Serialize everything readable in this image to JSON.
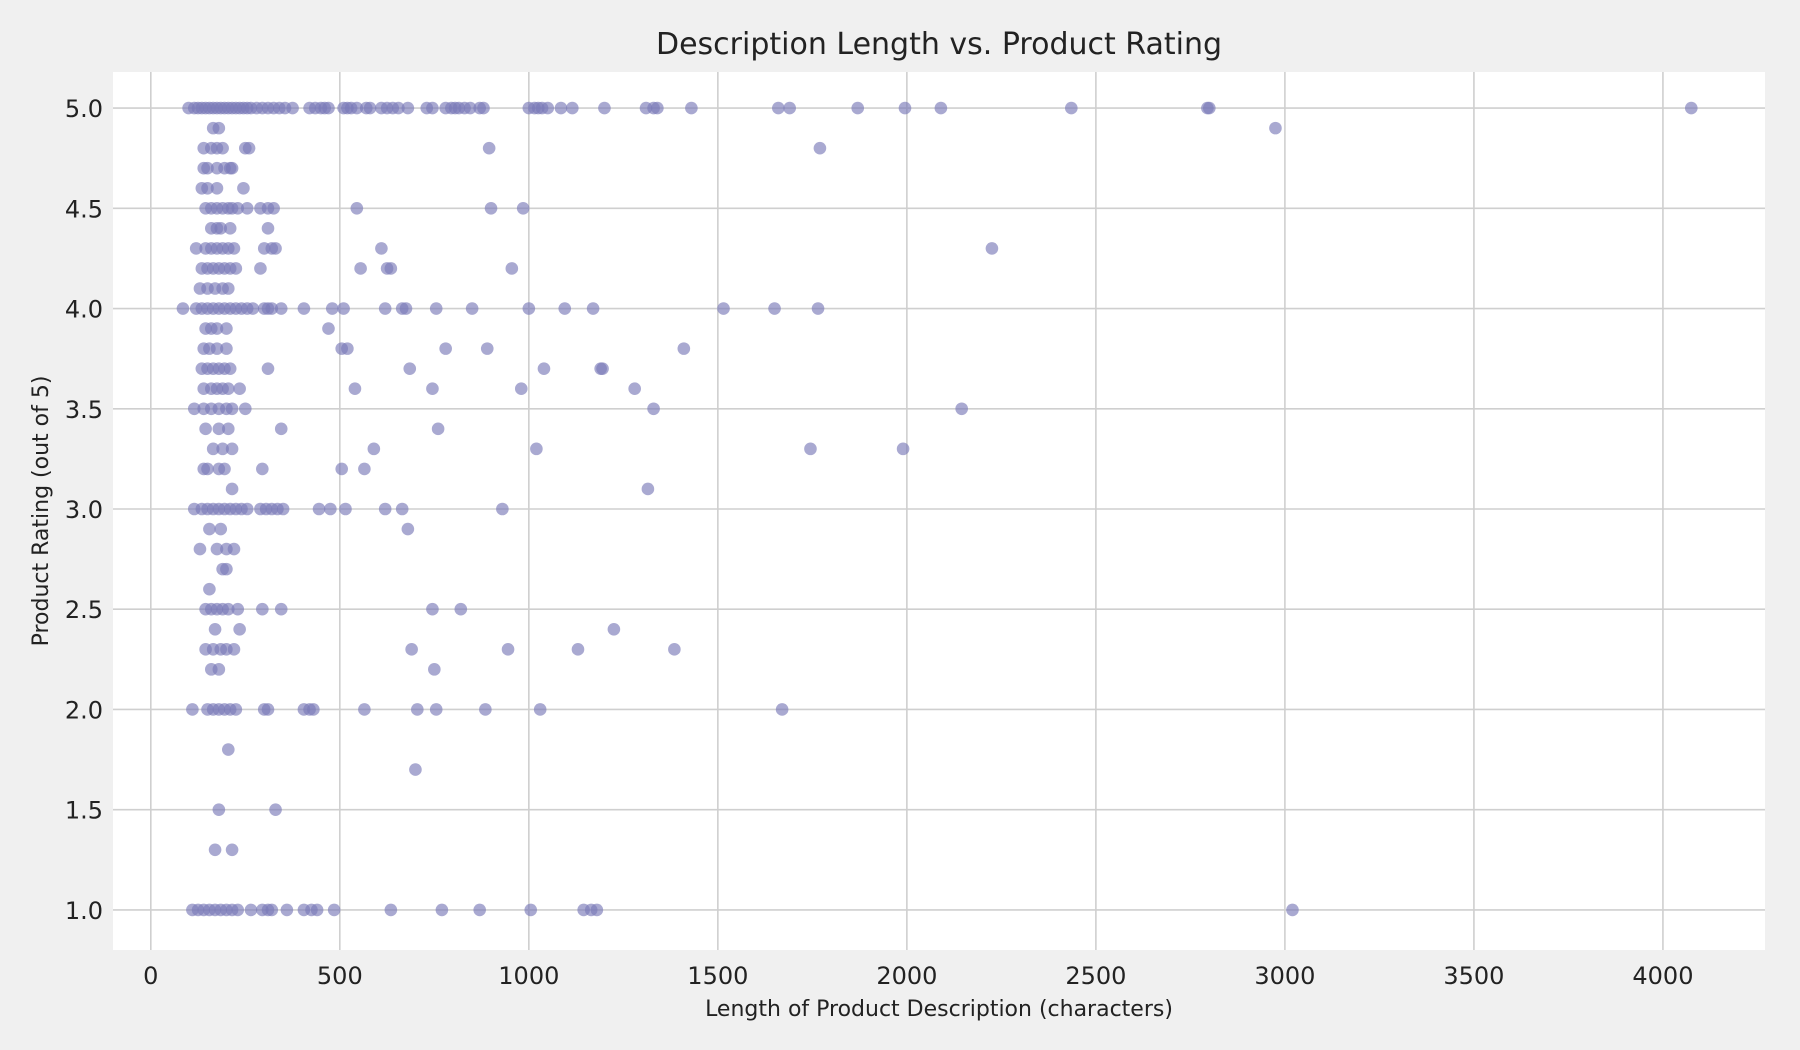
{
  "chart_data": {
    "type": "scatter",
    "title": "Description Length vs. Product Rating",
    "xlabel": "Length of Product Description (characters)",
    "ylabel": "Product Rating (out of 5)",
    "xlim": [
      -100,
      4270
    ],
    "ylim": [
      0.8,
      5.18
    ],
    "xticks": [
      0,
      500,
      1000,
      1500,
      2000,
      2500,
      3000,
      3500,
      4000
    ],
    "xtick_labels": [
      "0",
      "500",
      "1000",
      "1500",
      "2000",
      "2500",
      "3000",
      "3500",
      "4000"
    ],
    "yticks": [
      1.0,
      1.5,
      2.0,
      2.5,
      3.0,
      3.5,
      4.0,
      4.5,
      5.0
    ],
    "ytick_labels": [
      "1.0",
      "1.5",
      "2.0",
      "2.5",
      "3.0",
      "3.5",
      "4.0",
      "4.5",
      "5.0"
    ],
    "grid": true,
    "marker_color": "#7b7bb8",
    "marker_opacity": 0.65,
    "points": [
      [
        100,
        5.0
      ],
      [
        115,
        5.0
      ],
      [
        125,
        5.0
      ],
      [
        135,
        5.0
      ],
      [
        145,
        5.0
      ],
      [
        155,
        5.0
      ],
      [
        165,
        5.0
      ],
      [
        175,
        5.0
      ],
      [
        185,
        5.0
      ],
      [
        195,
        5.0
      ],
      [
        205,
        5.0
      ],
      [
        215,
        5.0
      ],
      [
        225,
        5.0
      ],
      [
        235,
        5.0
      ],
      [
        245,
        5.0
      ],
      [
        255,
        5.0
      ],
      [
        265,
        5.0
      ],
      [
        280,
        5.0
      ],
      [
        295,
        5.0
      ],
      [
        310,
        5.0
      ],
      [
        325,
        5.0
      ],
      [
        340,
        5.0
      ],
      [
        355,
        5.0
      ],
      [
        375,
        5.0
      ],
      [
        420,
        5.0
      ],
      [
        435,
        5.0
      ],
      [
        450,
        5.0
      ],
      [
        460,
        5.0
      ],
      [
        470,
        5.0
      ],
      [
        510,
        5.0
      ],
      [
        520,
        5.0
      ],
      [
        530,
        5.0
      ],
      [
        545,
        5.0
      ],
      [
        570,
        5.0
      ],
      [
        580,
        5.0
      ],
      [
        610,
        5.0
      ],
      [
        625,
        5.0
      ],
      [
        640,
        5.0
      ],
      [
        655,
        5.0
      ],
      [
        680,
        5.0
      ],
      [
        730,
        5.0
      ],
      [
        745,
        5.0
      ],
      [
        780,
        5.0
      ],
      [
        795,
        5.0
      ],
      [
        805,
        5.0
      ],
      [
        815,
        5.0
      ],
      [
        830,
        5.0
      ],
      [
        845,
        5.0
      ],
      [
        870,
        5.0
      ],
      [
        880,
        5.0
      ],
      [
        1000,
        5.0
      ],
      [
        1015,
        5.0
      ],
      [
        1025,
        5.0
      ],
      [
        1035,
        5.0
      ],
      [
        1050,
        5.0
      ],
      [
        1085,
        5.0
      ],
      [
        1115,
        5.0
      ],
      [
        1200,
        5.0
      ],
      [
        1310,
        5.0
      ],
      [
        1330,
        5.0
      ],
      [
        1340,
        5.0
      ],
      [
        1430,
        5.0
      ],
      [
        1660,
        5.0
      ],
      [
        1690,
        5.0
      ],
      [
        1870,
        5.0
      ],
      [
        1995,
        5.0
      ],
      [
        2090,
        5.0
      ],
      [
        2435,
        5.0
      ],
      [
        2795,
        5.0
      ],
      [
        2800,
        5.0
      ],
      [
        4075,
        5.0
      ],
      [
        2975,
        4.9
      ],
      [
        165,
        4.9
      ],
      [
        180,
        4.9
      ],
      [
        140,
        4.8
      ],
      [
        160,
        4.8
      ],
      [
        175,
        4.8
      ],
      [
        190,
        4.8
      ],
      [
        250,
        4.8
      ],
      [
        260,
        4.8
      ],
      [
        895,
        4.8
      ],
      [
        1770,
        4.8
      ],
      [
        140,
        4.7
      ],
      [
        150,
        4.7
      ],
      [
        175,
        4.7
      ],
      [
        195,
        4.7
      ],
      [
        210,
        4.7
      ],
      [
        215,
        4.7
      ],
      [
        135,
        4.6
      ],
      [
        150,
        4.6
      ],
      [
        175,
        4.6
      ],
      [
        245,
        4.6
      ],
      [
        145,
        4.5
      ],
      [
        160,
        4.5
      ],
      [
        175,
        4.5
      ],
      [
        190,
        4.5
      ],
      [
        205,
        4.5
      ],
      [
        215,
        4.5
      ],
      [
        230,
        4.5
      ],
      [
        255,
        4.5
      ],
      [
        290,
        4.5
      ],
      [
        310,
        4.5
      ],
      [
        325,
        4.5
      ],
      [
        545,
        4.5
      ],
      [
        900,
        4.5
      ],
      [
        985,
        4.5
      ],
      [
        160,
        4.4
      ],
      [
        175,
        4.4
      ],
      [
        185,
        4.4
      ],
      [
        210,
        4.4
      ],
      [
        310,
        4.4
      ],
      [
        120,
        4.3
      ],
      [
        145,
        4.3
      ],
      [
        160,
        4.3
      ],
      [
        175,
        4.3
      ],
      [
        190,
        4.3
      ],
      [
        205,
        4.3
      ],
      [
        220,
        4.3
      ],
      [
        300,
        4.3
      ],
      [
        320,
        4.3
      ],
      [
        330,
        4.3
      ],
      [
        610,
        4.3
      ],
      [
        2225,
        4.3
      ],
      [
        135,
        4.2
      ],
      [
        150,
        4.2
      ],
      [
        165,
        4.2
      ],
      [
        180,
        4.2
      ],
      [
        195,
        4.2
      ],
      [
        210,
        4.2
      ],
      [
        225,
        4.2
      ],
      [
        290,
        4.2
      ],
      [
        555,
        4.2
      ],
      [
        625,
        4.2
      ],
      [
        635,
        4.2
      ],
      [
        955,
        4.2
      ],
      [
        130,
        4.1
      ],
      [
        150,
        4.1
      ],
      [
        170,
        4.1
      ],
      [
        190,
        4.1
      ],
      [
        205,
        4.1
      ],
      [
        85,
        4.0
      ],
      [
        120,
        4.0
      ],
      [
        135,
        4.0
      ],
      [
        150,
        4.0
      ],
      [
        165,
        4.0
      ],
      [
        180,
        4.0
      ],
      [
        195,
        4.0
      ],
      [
        210,
        4.0
      ],
      [
        225,
        4.0
      ],
      [
        240,
        4.0
      ],
      [
        255,
        4.0
      ],
      [
        270,
        4.0
      ],
      [
        300,
        4.0
      ],
      [
        310,
        4.0
      ],
      [
        320,
        4.0
      ],
      [
        345,
        4.0
      ],
      [
        405,
        4.0
      ],
      [
        480,
        4.0
      ],
      [
        510,
        4.0
      ],
      [
        620,
        4.0
      ],
      [
        665,
        4.0
      ],
      [
        675,
        4.0
      ],
      [
        755,
        4.0
      ],
      [
        850,
        4.0
      ],
      [
        1000,
        4.0
      ],
      [
        1095,
        4.0
      ],
      [
        1170,
        4.0
      ],
      [
        1515,
        4.0
      ],
      [
        1650,
        4.0
      ],
      [
        1765,
        4.0
      ],
      [
        145,
        3.9
      ],
      [
        160,
        3.9
      ],
      [
        175,
        3.9
      ],
      [
        200,
        3.9
      ],
      [
        470,
        3.9
      ],
      [
        140,
        3.8
      ],
      [
        155,
        3.8
      ],
      [
        175,
        3.8
      ],
      [
        200,
        3.8
      ],
      [
        505,
        3.8
      ],
      [
        520,
        3.8
      ],
      [
        780,
        3.8
      ],
      [
        890,
        3.8
      ],
      [
        1410,
        3.8
      ],
      [
        135,
        3.7
      ],
      [
        150,
        3.7
      ],
      [
        165,
        3.7
      ],
      [
        180,
        3.7
      ],
      [
        195,
        3.7
      ],
      [
        210,
        3.7
      ],
      [
        310,
        3.7
      ],
      [
        685,
        3.7
      ],
      [
        1040,
        3.7
      ],
      [
        1190,
        3.7
      ],
      [
        1195,
        3.7
      ],
      [
        140,
        3.6
      ],
      [
        160,
        3.6
      ],
      [
        175,
        3.6
      ],
      [
        190,
        3.6
      ],
      [
        205,
        3.6
      ],
      [
        235,
        3.6
      ],
      [
        540,
        3.6
      ],
      [
        745,
        3.6
      ],
      [
        980,
        3.6
      ],
      [
        1280,
        3.6
      ],
      [
        115,
        3.5
      ],
      [
        140,
        3.5
      ],
      [
        160,
        3.5
      ],
      [
        180,
        3.5
      ],
      [
        200,
        3.5
      ],
      [
        215,
        3.5
      ],
      [
        250,
        3.5
      ],
      [
        1330,
        3.5
      ],
      [
        2145,
        3.5
      ],
      [
        145,
        3.4
      ],
      [
        180,
        3.4
      ],
      [
        205,
        3.4
      ],
      [
        345,
        3.4
      ],
      [
        760,
        3.4
      ],
      [
        165,
        3.3
      ],
      [
        190,
        3.3
      ],
      [
        215,
        3.3
      ],
      [
        590,
        3.3
      ],
      [
        1020,
        3.3
      ],
      [
        1745,
        3.3
      ],
      [
        1990,
        3.3
      ],
      [
        140,
        3.2
      ],
      [
        150,
        3.2
      ],
      [
        180,
        3.2
      ],
      [
        195,
        3.2
      ],
      [
        295,
        3.2
      ],
      [
        505,
        3.2
      ],
      [
        565,
        3.2
      ],
      [
        215,
        3.1
      ],
      [
        1315,
        3.1
      ],
      [
        115,
        3.0
      ],
      [
        135,
        3.0
      ],
      [
        150,
        3.0
      ],
      [
        165,
        3.0
      ],
      [
        180,
        3.0
      ],
      [
        195,
        3.0
      ],
      [
        210,
        3.0
      ],
      [
        225,
        3.0
      ],
      [
        240,
        3.0
      ],
      [
        255,
        3.0
      ],
      [
        290,
        3.0
      ],
      [
        305,
        3.0
      ],
      [
        320,
        3.0
      ],
      [
        335,
        3.0
      ],
      [
        350,
        3.0
      ],
      [
        445,
        3.0
      ],
      [
        475,
        3.0
      ],
      [
        515,
        3.0
      ],
      [
        620,
        3.0
      ],
      [
        665,
        3.0
      ],
      [
        930,
        3.0
      ],
      [
        155,
        2.9
      ],
      [
        185,
        2.9
      ],
      [
        680,
        2.9
      ],
      [
        130,
        2.8
      ],
      [
        175,
        2.8
      ],
      [
        200,
        2.8
      ],
      [
        220,
        2.8
      ],
      [
        190,
        2.7
      ],
      [
        200,
        2.7
      ],
      [
        155,
        2.6
      ],
      [
        145,
        2.5
      ],
      [
        160,
        2.5
      ],
      [
        175,
        2.5
      ],
      [
        190,
        2.5
      ],
      [
        205,
        2.5
      ],
      [
        230,
        2.5
      ],
      [
        295,
        2.5
      ],
      [
        345,
        2.5
      ],
      [
        745,
        2.5
      ],
      [
        820,
        2.5
      ],
      [
        170,
        2.4
      ],
      [
        235,
        2.4
      ],
      [
        1225,
        2.4
      ],
      [
        145,
        2.3
      ],
      [
        165,
        2.3
      ],
      [
        185,
        2.3
      ],
      [
        200,
        2.3
      ],
      [
        220,
        2.3
      ],
      [
        690,
        2.3
      ],
      [
        945,
        2.3
      ],
      [
        1130,
        2.3
      ],
      [
        1385,
        2.3
      ],
      [
        160,
        2.2
      ],
      [
        180,
        2.2
      ],
      [
        750,
        2.2
      ],
      [
        110,
        2.0
      ],
      [
        150,
        2.0
      ],
      [
        165,
        2.0
      ],
      [
        180,
        2.0
      ],
      [
        195,
        2.0
      ],
      [
        210,
        2.0
      ],
      [
        225,
        2.0
      ],
      [
        300,
        2.0
      ],
      [
        310,
        2.0
      ],
      [
        405,
        2.0
      ],
      [
        420,
        2.0
      ],
      [
        430,
        2.0
      ],
      [
        565,
        2.0
      ],
      [
        705,
        2.0
      ],
      [
        755,
        2.0
      ],
      [
        885,
        2.0
      ],
      [
        1030,
        2.0
      ],
      [
        1670,
        2.0
      ],
      [
        205,
        1.8
      ],
      [
        700,
        1.7
      ],
      [
        180,
        1.5
      ],
      [
        330,
        1.5
      ],
      [
        170,
        1.3
      ],
      [
        215,
        1.3
      ],
      [
        110,
        1.0
      ],
      [
        125,
        1.0
      ],
      [
        140,
        1.0
      ],
      [
        155,
        1.0
      ],
      [
        170,
        1.0
      ],
      [
        185,
        1.0
      ],
      [
        200,
        1.0
      ],
      [
        215,
        1.0
      ],
      [
        230,
        1.0
      ],
      [
        265,
        1.0
      ],
      [
        295,
        1.0
      ],
      [
        310,
        1.0
      ],
      [
        320,
        1.0
      ],
      [
        360,
        1.0
      ],
      [
        405,
        1.0
      ],
      [
        425,
        1.0
      ],
      [
        440,
        1.0
      ],
      [
        485,
        1.0
      ],
      [
        635,
        1.0
      ],
      [
        770,
        1.0
      ],
      [
        870,
        1.0
      ],
      [
        1005,
        1.0
      ],
      [
        1145,
        1.0
      ],
      [
        1165,
        1.0
      ],
      [
        1180,
        1.0
      ],
      [
        3020,
        1.0
      ]
    ]
  }
}
